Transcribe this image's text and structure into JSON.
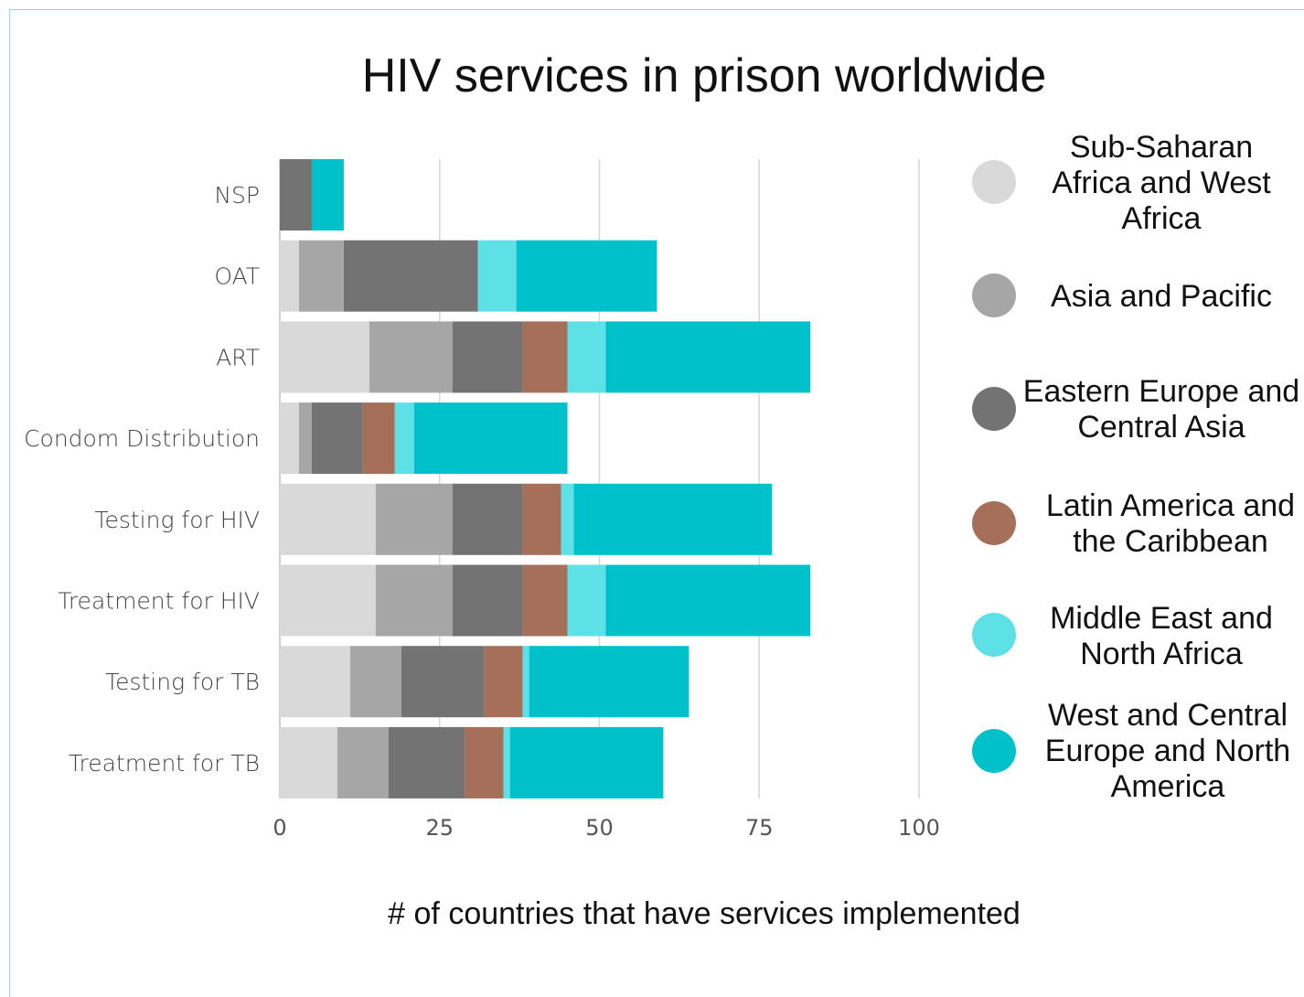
{
  "chart_data": {
    "type": "bar",
    "orientation": "horizontal",
    "stacked": true,
    "title": "HIV services in prison worldwide",
    "xlabel": "# of countries that have services implemented",
    "ylabel": "",
    "xlim": [
      0,
      100
    ],
    "xticks": [
      0,
      25,
      50,
      75,
      100
    ],
    "grid": true,
    "legend_position": "right",
    "categories": [
      "NSP",
      "OAT",
      "ART",
      "Condom Distribution",
      "Testing for HIV",
      "Treatment for HIV",
      "Testing for TB",
      "Treatment for TB"
    ],
    "series": [
      {
        "name": "Sub-Saharan Africa and West Africa",
        "color": "#d9d9d9",
        "values": [
          0,
          3,
          14,
          3,
          15,
          15,
          11,
          9
        ]
      },
      {
        "name": "Asia and Pacific",
        "color": "#a6a6a6",
        "values": [
          0,
          7,
          13,
          2,
          12,
          12,
          8,
          8
        ]
      },
      {
        "name": "Eastern Europe and Central Asia",
        "color": "#737373",
        "values": [
          5,
          21,
          11,
          8,
          11,
          11,
          13,
          12
        ]
      },
      {
        "name": "Latin America and the Caribbean",
        "color": "#a66f5a",
        "values": [
          0,
          0,
          7,
          5,
          6,
          7,
          6,
          6
        ]
      },
      {
        "name": "Middle East and North Africa",
        "color": "#5ee1e6",
        "values": [
          0,
          6,
          6,
          3,
          2,
          6,
          1,
          1
        ]
      },
      {
        "name": "West and Central Europe and North America",
        "color": "#00c1ca",
        "values": [
          5,
          22,
          32,
          24,
          31,
          32,
          25,
          24
        ]
      }
    ]
  }
}
